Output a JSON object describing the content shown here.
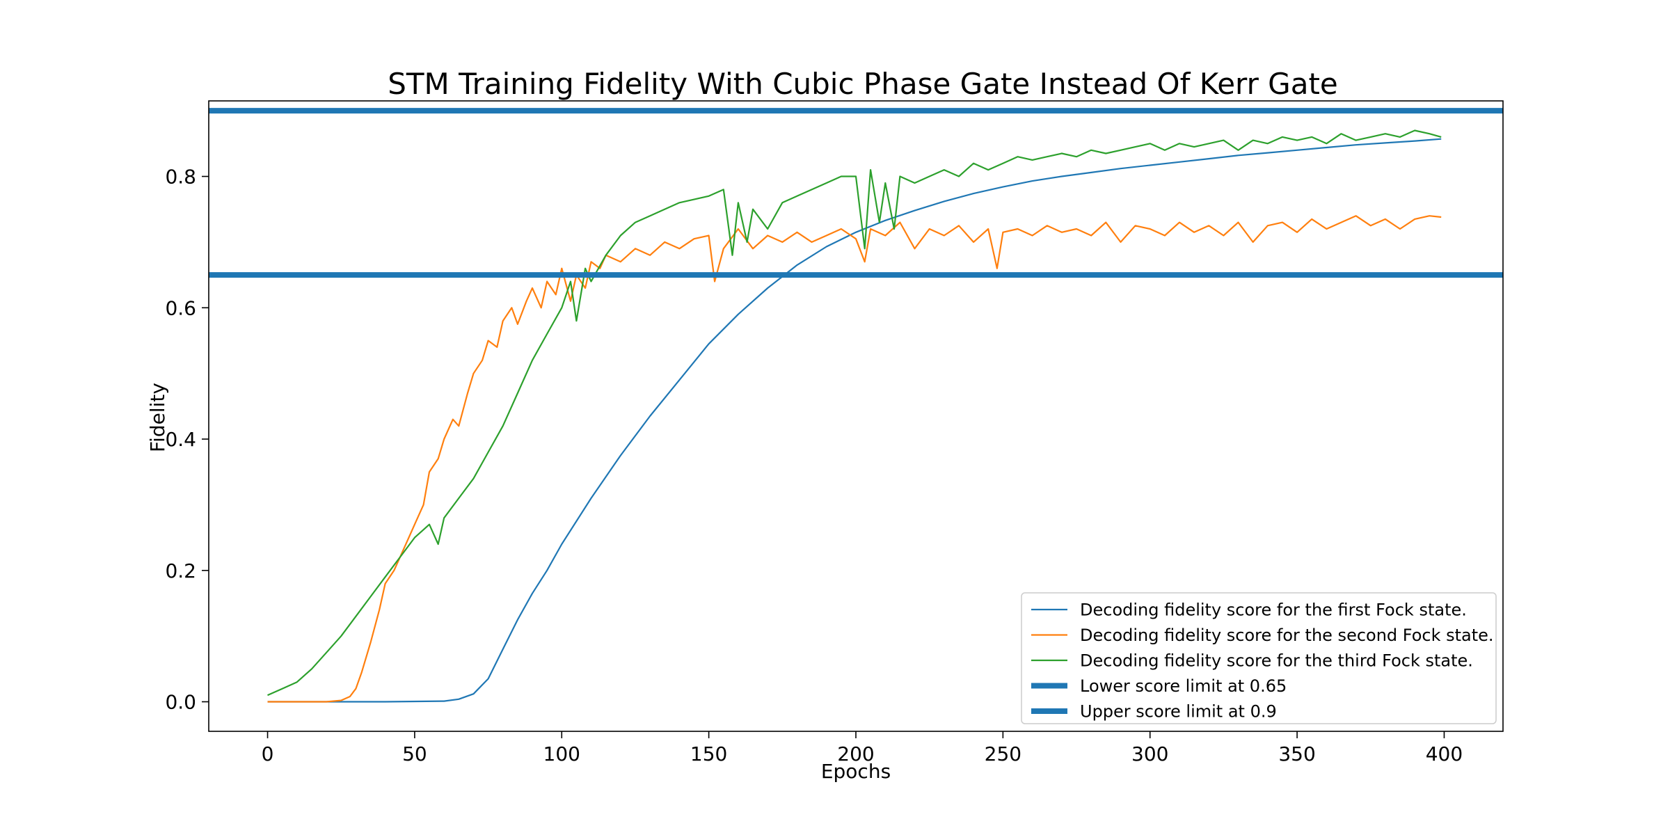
{
  "chart_data": {
    "type": "line",
    "title": "STM Training Fidelity With Cubic Phase Gate Instead Of Kerr Gate",
    "xlabel": "Epochs",
    "ylabel": "Fidelity",
    "xlim": [
      -20,
      420
    ],
    "ylim": [
      -0.045,
      0.915
    ],
    "xticks": [
      0,
      50,
      100,
      150,
      200,
      250,
      300,
      350,
      400
    ],
    "xtick_labels": [
      "0",
      "50",
      "100",
      "150",
      "200",
      "250",
      "300",
      "350",
      "400"
    ],
    "yticks": [
      0.0,
      0.2,
      0.4,
      0.6,
      0.8
    ],
    "ytick_labels": [
      "0.0",
      "0.2",
      "0.4",
      "0.6",
      "0.8"
    ],
    "grid": false,
    "legend_position": "bottom-right",
    "series": [
      {
        "name": "Decoding fidelity score for the first Fock state.",
        "color": "#1f77b4",
        "x": [
          0,
          20,
          40,
          60,
          65,
          70,
          75,
          80,
          85,
          90,
          95,
          100,
          110,
          120,
          130,
          140,
          150,
          160,
          170,
          180,
          190,
          200,
          210,
          220,
          230,
          240,
          250,
          260,
          270,
          280,
          290,
          300,
          310,
          320,
          330,
          340,
          350,
          360,
          370,
          380,
          390,
          399
        ],
        "y": [
          0.0,
          0.0,
          0.0,
          0.001,
          0.004,
          0.012,
          0.035,
          0.08,
          0.125,
          0.165,
          0.2,
          0.24,
          0.31,
          0.375,
          0.435,
          0.49,
          0.545,
          0.59,
          0.63,
          0.665,
          0.693,
          0.715,
          0.733,
          0.748,
          0.762,
          0.774,
          0.784,
          0.793,
          0.8,
          0.806,
          0.812,
          0.817,
          0.822,
          0.827,
          0.832,
          0.836,
          0.84,
          0.844,
          0.848,
          0.851,
          0.854,
          0.857
        ]
      },
      {
        "name": "Decoding fidelity score for the second Fock state.",
        "color": "#ff7f0e",
        "x": [
          0,
          10,
          20,
          25,
          28,
          30,
          32,
          35,
          38,
          40,
          43,
          45,
          48,
          50,
          53,
          55,
          58,
          60,
          63,
          65,
          68,
          70,
          73,
          75,
          78,
          80,
          83,
          85,
          88,
          90,
          93,
          95,
          98,
          100,
          103,
          105,
          108,
          110,
          113,
          115,
          120,
          125,
          130,
          135,
          140,
          145,
          150,
          152,
          155,
          160,
          165,
          170,
          175,
          180,
          185,
          190,
          195,
          200,
          203,
          205,
          210,
          215,
          220,
          225,
          230,
          235,
          240,
          245,
          248,
          250,
          255,
          260,
          265,
          270,
          275,
          280,
          285,
          290,
          295,
          300,
          305,
          310,
          315,
          320,
          325,
          330,
          335,
          340,
          345,
          350,
          355,
          360,
          365,
          370,
          375,
          380,
          385,
          390,
          395,
          399
        ],
        "y": [
          0.0,
          0.0,
          0.0,
          0.002,
          0.008,
          0.02,
          0.045,
          0.09,
          0.14,
          0.18,
          0.2,
          0.22,
          0.25,
          0.27,
          0.3,
          0.35,
          0.37,
          0.4,
          0.43,
          0.42,
          0.47,
          0.5,
          0.52,
          0.55,
          0.54,
          0.58,
          0.6,
          0.575,
          0.61,
          0.63,
          0.6,
          0.64,
          0.62,
          0.66,
          0.61,
          0.65,
          0.63,
          0.67,
          0.66,
          0.68,
          0.67,
          0.69,
          0.68,
          0.7,
          0.69,
          0.705,
          0.71,
          0.64,
          0.69,
          0.72,
          0.69,
          0.71,
          0.7,
          0.715,
          0.7,
          0.71,
          0.72,
          0.705,
          0.67,
          0.72,
          0.71,
          0.73,
          0.69,
          0.72,
          0.71,
          0.725,
          0.7,
          0.72,
          0.66,
          0.715,
          0.72,
          0.71,
          0.725,
          0.715,
          0.72,
          0.71,
          0.73,
          0.7,
          0.725,
          0.72,
          0.71,
          0.73,
          0.715,
          0.725,
          0.71,
          0.73,
          0.7,
          0.725,
          0.73,
          0.715,
          0.735,
          0.72,
          0.73,
          0.74,
          0.725,
          0.735,
          0.72,
          0.735,
          0.74,
          0.738
        ]
      },
      {
        "name": "Decoding fidelity score for the third Fock state.",
        "color": "#2ca02c",
        "x": [
          0,
          5,
          10,
          15,
          20,
          25,
          30,
          35,
          40,
          45,
          50,
          55,
          58,
          60,
          65,
          70,
          75,
          80,
          85,
          90,
          95,
          100,
          103,
          105,
          108,
          110,
          115,
          120,
          125,
          130,
          135,
          140,
          145,
          150,
          155,
          158,
          160,
          163,
          165,
          170,
          175,
          180,
          185,
          190,
          195,
          200,
          203,
          205,
          208,
          210,
          213,
          215,
          220,
          225,
          230,
          235,
          240,
          245,
          250,
          255,
          260,
          265,
          270,
          275,
          280,
          285,
          290,
          295,
          300,
          305,
          310,
          315,
          320,
          325,
          330,
          335,
          340,
          345,
          350,
          355,
          360,
          365,
          370,
          375,
          380,
          385,
          390,
          395,
          399
        ],
        "y": [
          0.01,
          0.02,
          0.03,
          0.05,
          0.075,
          0.1,
          0.13,
          0.16,
          0.19,
          0.22,
          0.25,
          0.27,
          0.24,
          0.28,
          0.31,
          0.34,
          0.38,
          0.42,
          0.47,
          0.52,
          0.56,
          0.6,
          0.64,
          0.58,
          0.66,
          0.64,
          0.68,
          0.71,
          0.73,
          0.74,
          0.75,
          0.76,
          0.765,
          0.77,
          0.78,
          0.68,
          0.76,
          0.7,
          0.75,
          0.72,
          0.76,
          0.77,
          0.78,
          0.79,
          0.8,
          0.8,
          0.69,
          0.81,
          0.73,
          0.79,
          0.72,
          0.8,
          0.79,
          0.8,
          0.81,
          0.8,
          0.82,
          0.81,
          0.82,
          0.83,
          0.825,
          0.83,
          0.835,
          0.83,
          0.84,
          0.835,
          0.84,
          0.845,
          0.85,
          0.84,
          0.85,
          0.845,
          0.85,
          0.855,
          0.84,
          0.855,
          0.85,
          0.86,
          0.855,
          0.86,
          0.85,
          0.865,
          0.855,
          0.86,
          0.865,
          0.86,
          0.87,
          0.865,
          0.86
        ]
      }
    ],
    "hlines": [
      {
        "name": "Lower score limit at 0.65",
        "y": 0.65,
        "color": "#1f77b4"
      },
      {
        "name": "Upper score limit at 0.9",
        "y": 0.9,
        "color": "#1f77b4"
      }
    ]
  }
}
